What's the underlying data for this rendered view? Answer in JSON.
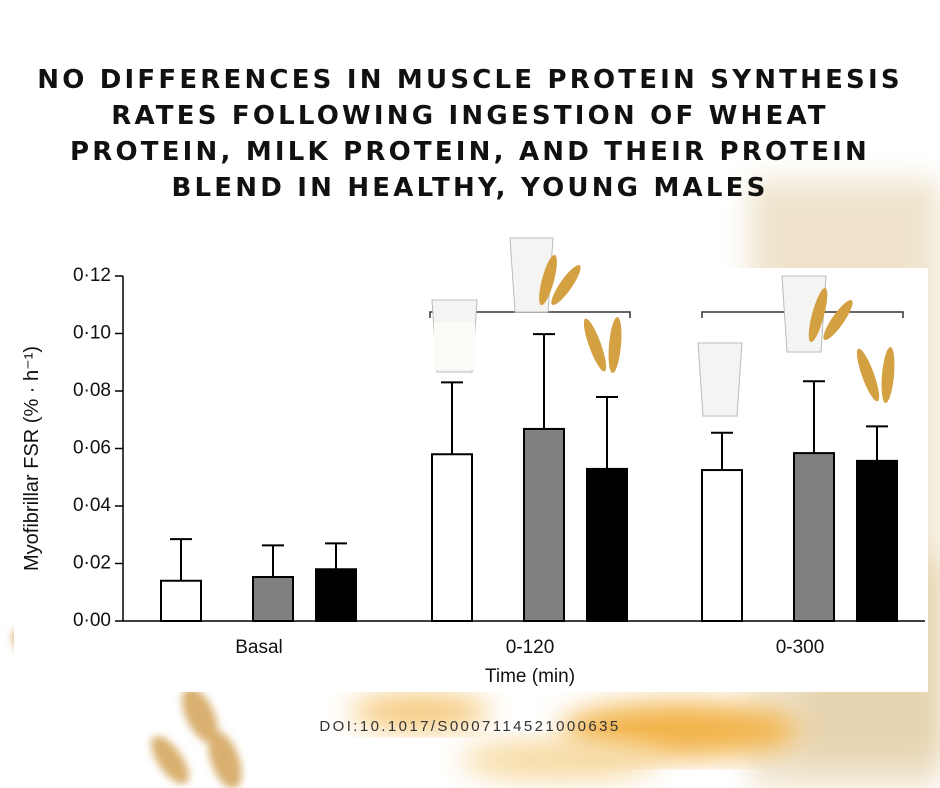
{
  "chart_data": {
    "type": "bar",
    "title": "No differences in muscle protein synthesis rates following ingestion of wheat protein, milk protein, and their protein blend in healthy, young males",
    "y_label": "Myofibrillar FSR (% · h⁻¹)",
    "x_label": "Time (min)",
    "source": "DOI:10.1017/S0007114521000635",
    "categories": [
      "Basal",
      "0-120",
      "0-300"
    ],
    "series": [
      {
        "color": "#ffffff",
        "values": [
          0.014,
          0.058,
          0.0525
        ],
        "errors": [
          0.0145,
          0.025,
          0.013
        ]
      },
      {
        "color": "#808080",
        "values": [
          0.0153,
          0.0668,
          0.0584
        ],
        "errors": [
          0.011,
          0.033,
          0.025
        ]
      },
      {
        "color": "#000000",
        "values": [
          0.018,
          0.0529,
          0.0557
        ],
        "errors": [
          0.009,
          0.025,
          0.012
        ]
      }
    ],
    "ylim": [
      0,
      0.12
    ],
    "yticks": [
      {
        "value": 0,
        "label": "0·00"
      },
      {
        "value": 0.02,
        "label": "0·02"
      },
      {
        "value": 0.04,
        "label": "0·04"
      },
      {
        "value": 0.06,
        "label": "0·06"
      },
      {
        "value": 0.08,
        "label": "0·08"
      },
      {
        "value": 0.1,
        "label": "0·10"
      },
      {
        "value": 0.12,
        "label": "0·12"
      }
    ],
    "grid": false
  }
}
